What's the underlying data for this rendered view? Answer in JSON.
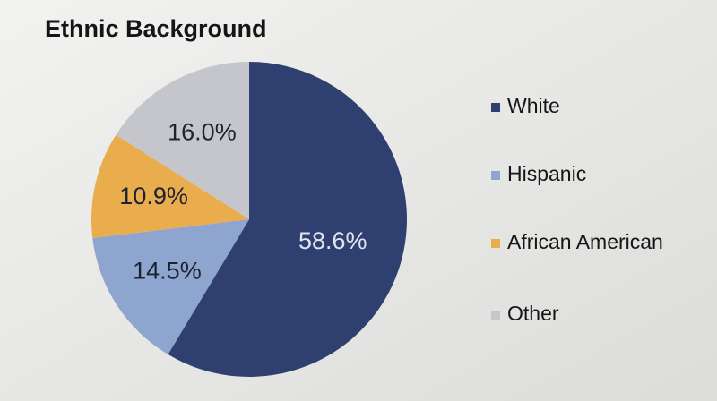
{
  "chart_data": {
    "type": "pie",
    "title": "Ethnic Background",
    "categories": [
      "White",
      "Hispanic",
      "African American",
      "Other"
    ],
    "values": [
      58.6,
      14.5,
      10.9,
      16.0
    ],
    "value_labels": [
      "58.6%",
      "14.5%",
      "10.9%",
      "16.0%"
    ],
    "colors": [
      "#2f4070",
      "#8ea5cf",
      "#eaad4e",
      "#c5c6cb"
    ],
    "label_colors": [
      "#dfe5f0",
      "#1e2230",
      "#1e2230",
      "#1e2230"
    ],
    "legend": "right"
  }
}
